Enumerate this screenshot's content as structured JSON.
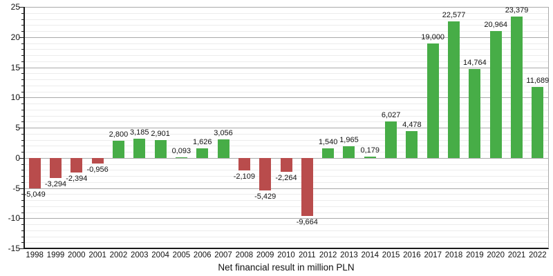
{
  "chart_data": {
    "type": "bar",
    "title": "Net financial result in million PLN",
    "categories": [
      "1998",
      "1999",
      "2000",
      "2001",
      "2002",
      "2003",
      "2004",
      "2005",
      "2006",
      "2007",
      "2008",
      "2009",
      "2010",
      "2011",
      "2012",
      "2013",
      "2014",
      "2015",
      "2016",
      "2017",
      "2018",
      "2019",
      "2020",
      "2021",
      "2022"
    ],
    "values": [
      -5.049,
      -3.294,
      -2.394,
      -0.956,
      2.8,
      3.185,
      2.901,
      0.093,
      1.626,
      3.056,
      -2.109,
      -5.429,
      -2.264,
      -9.664,
      1.54,
      1.965,
      0.179,
      6.027,
      4.478,
      19.0,
      22.577,
      14.764,
      20.964,
      23.379,
      11.689
    ],
    "value_labels": [
      "-5,049",
      "-3,294",
      "-2,394",
      "-0,956",
      "2,800",
      "3,185",
      "2,901",
      "0,093",
      "1,626",
      "3,056",
      "-2,109",
      "-5,429",
      "-2,264",
      "-9,664",
      "1,540",
      "1,965",
      "0,179",
      "6,027",
      "4,478",
      "19,000",
      "22,577",
      "14,764",
      "20,964",
      "23,379",
      "11,689"
    ],
    "xlabel": "",
    "ylabel": "",
    "ylim": [
      -15,
      25
    ],
    "y_major_step": 5,
    "y_minor_step": 1,
    "y_tick_labels": [
      "25",
      "20",
      "15",
      "10",
      "5",
      "0",
      "-5",
      "-10",
      "-15"
    ],
    "grid": "horizontal, minor every 1 unit, major every 5 units",
    "legend": "none",
    "colors": {
      "positive_bar": "#47ad47",
      "negative_bar": "#b94c4c",
      "major_grid": "#a9a9a9",
      "minor_grid": "#ececec",
      "axis": "#1a1a1a",
      "text": "#111111"
    }
  }
}
